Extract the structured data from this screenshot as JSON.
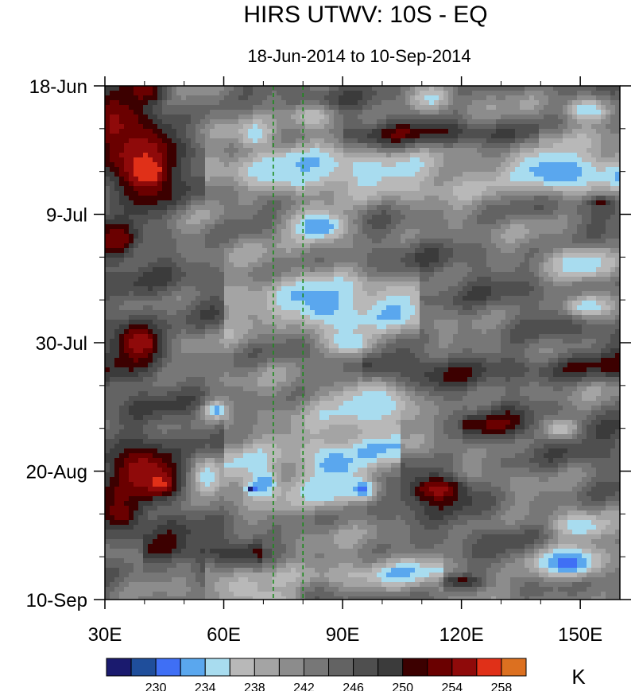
{
  "title": "HIRS UTWV: 10S - EQ",
  "subtitle": "18-Jun-2014 to 10-Sep-2014",
  "unit": "K",
  "chart_data": {
    "type": "heatmap",
    "title": "HIRS UTWV: 10S - EQ",
    "subtitle": "18-Jun-2014 to 10-Sep-2014",
    "x_range": [
      30,
      160
    ],
    "y_range_days": [
      0,
      84
    ],
    "x_ticks": [
      {
        "value": 30,
        "label": "30E"
      },
      {
        "value": 60,
        "label": "60E"
      },
      {
        "value": 90,
        "label": "90E"
      },
      {
        "value": 120,
        "label": "120E"
      },
      {
        "value": 150,
        "label": "150E"
      }
    ],
    "y_ticks": [
      {
        "day": 0,
        "label": "18-Jun"
      },
      {
        "day": 21,
        "label": "9-Jul"
      },
      {
        "day": 42,
        "label": "30-Jul"
      },
      {
        "day": 63,
        "label": "20-Aug"
      },
      {
        "day": 84,
        "label": "10-Sep"
      }
    ],
    "reference_lines_lon": [
      72.5,
      80
    ],
    "levels": [
      230,
      232,
      234,
      236,
      238,
      240,
      242,
      244,
      246,
      248,
      250,
      252,
      254,
      256,
      258,
      260
    ],
    "colorbar_labels": [
      {
        "level_index": 1,
        "label": "230"
      },
      {
        "level_index": 3,
        "label": "234"
      },
      {
        "level_index": 5,
        "label": "238"
      },
      {
        "level_index": 7,
        "label": "242"
      },
      {
        "level_index": 9,
        "label": "246"
      },
      {
        "level_index": 11,
        "label": "250"
      },
      {
        "level_index": 13,
        "label": "254"
      },
      {
        "level_index": 15,
        "label": "258"
      }
    ],
    "colors": [
      "#1a1a6e",
      "#1f4e9b",
      "#3f6ff5",
      "#5aa7ee",
      "#a8dcef",
      "#b8b8b8",
      "#a4a4a4",
      "#8c8c8c",
      "#777777",
      "#636363",
      "#4f4f4f",
      "#3b3b3b",
      "#3c0000",
      "#6a0000",
      "#8f0a0a",
      "#e03018",
      "#dc7020"
    ],
    "unit": "K",
    "background_value": 246,
    "features": [
      {
        "lon": 32,
        "day": 6,
        "value": 256,
        "rlon": 7,
        "rday": 6
      },
      {
        "lon": 40,
        "day": 1,
        "value": 255,
        "rlon": 6,
        "rday": 2
      },
      {
        "lon": 40,
        "day": 13,
        "value": 258,
        "rlon": 8,
        "rday": 8
      },
      {
        "lon": 41,
        "day": 14,
        "value": 260,
        "rlon": 4,
        "rday": 2
      },
      {
        "lon": 33,
        "day": 25,
        "value": 256,
        "rlon": 4,
        "rday": 3
      },
      {
        "lon": 38,
        "day": 42,
        "value": 257,
        "rlon": 7,
        "rday": 4
      },
      {
        "lon": 40,
        "day": 42,
        "value": 258,
        "rlon": 2,
        "rday": 1
      },
      {
        "lon": 40,
        "day": 63,
        "value": 258,
        "rlon": 10,
        "rday": 5
      },
      {
        "lon": 44,
        "day": 65,
        "value": 259,
        "rlon": 3,
        "rday": 1.5
      },
      {
        "lon": 34,
        "day": 70,
        "value": 255,
        "rlon": 5,
        "rday": 2.5
      },
      {
        "lon": 114,
        "day": 66,
        "value": 257,
        "rlon": 8,
        "rday": 2.5
      },
      {
        "lon": 120,
        "day": 81,
        "value": 253,
        "rlon": 5,
        "rday": 1
      },
      {
        "lon": 155,
        "day": 19,
        "value": 253,
        "rlon": 3,
        "rday": 0.7
      },
      {
        "lon": 78,
        "day": 14,
        "value": 236,
        "rlon": 10,
        "rday": 3.5
      },
      {
        "lon": 84,
        "day": 23,
        "value": 234,
        "rlon": 9,
        "rday": 3
      },
      {
        "lon": 85,
        "day": 36,
        "value": 235,
        "rlon": 8,
        "rday": 3.5
      },
      {
        "lon": 92,
        "day": 42,
        "value": 236,
        "rlon": 7,
        "rday": 2.5
      },
      {
        "lon": 98,
        "day": 52,
        "value": 236,
        "rlon": 12,
        "rday": 4
      },
      {
        "lon": 88,
        "day": 62,
        "value": 234,
        "rlon": 6,
        "rday": 3
      },
      {
        "lon": 70,
        "day": 65,
        "value": 234,
        "rlon": 4,
        "rday": 2.5
      },
      {
        "lon": 67,
        "day": 66,
        "value": 229,
        "rlon": 1.3,
        "rday": 0.6
      },
      {
        "lon": 86,
        "day": 66,
        "value": 236,
        "rlon": 9,
        "rday": 3
      },
      {
        "lon": 95,
        "day": 66,
        "value": 233,
        "rlon": 3,
        "rday": 1.5
      },
      {
        "lon": 144,
        "day": 14,
        "value": 234,
        "rlon": 10,
        "rday": 3
      },
      {
        "lon": 152,
        "day": 4,
        "value": 236,
        "rlon": 6,
        "rday": 2
      },
      {
        "lon": 150,
        "day": 29,
        "value": 236,
        "rlon": 8,
        "rday": 2.5
      },
      {
        "lon": 152,
        "day": 36,
        "value": 236,
        "rlon": 6,
        "rday": 2
      },
      {
        "lon": 150,
        "day": 72,
        "value": 236,
        "rlon": 7,
        "rday": 2
      },
      {
        "lon": 147,
        "day": 78,
        "value": 233,
        "rlon": 10,
        "rday": 3
      },
      {
        "lon": 72,
        "day": 84,
        "value": 238,
        "rlon": 8,
        "rday": 2
      },
      {
        "lon": 56,
        "day": 64,
        "value": 237,
        "rlon": 4,
        "rday": 3
      },
      {
        "lon": 58,
        "day": 53,
        "value": 235,
        "rlon": 3,
        "rday": 1.5
      },
      {
        "lon": 68,
        "day": 8,
        "value": 236,
        "rlon": 4,
        "rday": 2
      },
      {
        "lon": 82,
        "day": 5,
        "value": 238,
        "rlon": 6,
        "rday": 2
      },
      {
        "lon": 112,
        "day": 2,
        "value": 237,
        "rlon": 5,
        "rday": 2
      },
      {
        "lon": 145,
        "day": 56,
        "value": 238,
        "rlon": 6,
        "rday": 2
      }
    ],
    "moist_bands": [
      {
        "day": 14,
        "lon_from": 55,
        "lon_to": 160,
        "value": 239,
        "halfwidth": 4
      },
      {
        "day": 36,
        "lon_from": 60,
        "lon_to": 110,
        "value": 239,
        "halfwidth": 5
      },
      {
        "day": 60,
        "lon_from": 60,
        "lon_to": 105,
        "value": 239,
        "halfwidth": 6
      },
      {
        "day": 80,
        "lon_from": 55,
        "lon_to": 115,
        "value": 240,
        "halfwidth": 3
      }
    ],
    "dry_bands": [
      {
        "day": 46,
        "lon_from": 95,
        "lon_to": 160,
        "value": 251,
        "halfwidth": 2.5
      },
      {
        "day": 8,
        "lon_from": 90,
        "lon_to": 140,
        "value": 250,
        "halfwidth": 2
      },
      {
        "day": 76,
        "lon_from": 40,
        "lon_to": 70,
        "value": 251,
        "halfwidth": 2
      },
      {
        "day": 56,
        "lon_from": 120,
        "lon_to": 160,
        "value": 251,
        "halfwidth": 2
      }
    ]
  }
}
